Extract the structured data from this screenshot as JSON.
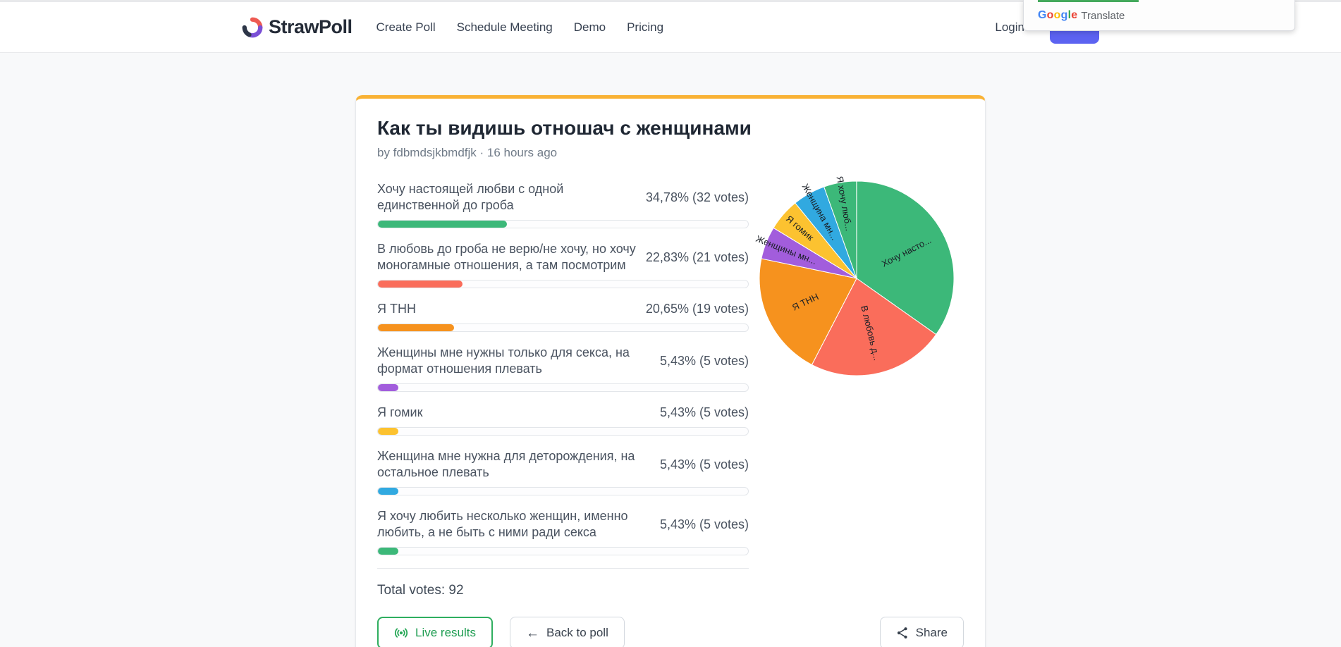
{
  "nav": {
    "brand": "StrawPoll",
    "links": [
      {
        "label": "Create Poll"
      },
      {
        "label": "Schedule Meeting"
      },
      {
        "label": "Demo"
      },
      {
        "label": "Pricing"
      }
    ],
    "login_label": "Login"
  },
  "translate_widget": {
    "brand": "Google",
    "label": "Translate",
    "brand_colors": [
      "#4285F4",
      "#EA4335",
      "#FBBC05",
      "#4285F4",
      "#34A853",
      "#EA4335"
    ],
    "progress_line_color": "#44a95c"
  },
  "poll": {
    "title": "Как ты видишь отношач с женщинами",
    "byline": "by fdbmdsjkbmdfjk · 16 hours ago",
    "total_votes_label": "Total votes: 92",
    "total_votes": 92,
    "options": [
      {
        "label": "Хочу настоящей любви с одной единственной до гроба",
        "percent_label": "34,78% (32 votes)",
        "percent": 34.78,
        "votes": 32,
        "color": "#3cb879",
        "pie_label": "Хочу насто..."
      },
      {
        "label": "В любовь до гроба не верю/не хочу, но хочу моногамные отношения, а там посмотрим",
        "percent_label": "22,83% (21 votes)",
        "percent": 22.83,
        "votes": 21,
        "color": "#fa6d5b",
        "pie_label": "В любовь д..."
      },
      {
        "label": "Я ТНН",
        "percent_label": "20,65% (19 votes)",
        "percent": 20.65,
        "votes": 19,
        "color": "#f6921e",
        "pie_label": "Я ТНН"
      },
      {
        "label": "Женщины мне нужны только для секса, на формат отношения плевать",
        "percent_label": "5,43% (5 votes)",
        "percent": 5.43,
        "votes": 5,
        "color": "#a25ddc",
        "pie_label": "Женщины мн..."
      },
      {
        "label": "Я гомик",
        "percent_label": "5,43% (5 votes)",
        "percent": 5.43,
        "votes": 5,
        "color": "#fcc230",
        "pie_label": "Я гомик"
      },
      {
        "label": "Женщина мне нужна для деторождения, на остальное плевать",
        "percent_label": "5,43% (5 votes)",
        "percent": 5.43,
        "votes": 5,
        "color": "#31a9e0",
        "pie_label": "Женщина мн..."
      },
      {
        "label": "Я хочу любить несколько женщин, именно любить, а не быть с ними ради секса",
        "percent_label": "5,43% (5 votes)",
        "percent": 5.43,
        "votes": 5,
        "color": "#3cb879",
        "pie_label": "Я хочу люб..."
      }
    ]
  },
  "actions": {
    "live_results": "Live results",
    "back_to_poll": "Back to poll",
    "share": "Share"
  },
  "theme": {
    "card_accent": "#f9b234",
    "signup_button_color": "#5c63f1",
    "live_green": "#27a857"
  },
  "chart_data": {
    "type": "pie",
    "title": "Как ты видишь отношач с женщинами",
    "labels": [
      "Хочу настоящей любви с одной единственной до гроба",
      "В любовь до гроба не верю/не хочу, но хочу моногамные отношения, а там посмотрим",
      "Я ТНН",
      "Женщины мне нужны только для секса, на формат отношения плевать",
      "Я гомик",
      "Женщина мне нужна для деторождения, на остальное плевать",
      "Я хочу любить несколько женщин, именно любить, а не быть с ними ради секса"
    ],
    "slice_labels": [
      "Хочу насто...",
      "В любовь д...",
      "Я ТНН",
      "Женщины мн...",
      "Я гомик",
      "Женщина мн...",
      "Я хочу люб..."
    ],
    "values": [
      32,
      21,
      19,
      5,
      5,
      5,
      5
    ],
    "percents": [
      34.78,
      22.83,
      20.65,
      5.43,
      5.43,
      5.43,
      5.43
    ],
    "colors": [
      "#3cb879",
      "#fa6d5b",
      "#f6921e",
      "#a25ddc",
      "#fcc230",
      "#31a9e0",
      "#3cb879"
    ],
    "total": 92,
    "legend_position": "none",
    "start_angle_deg_from_top": 0,
    "direction": "clockwise"
  }
}
